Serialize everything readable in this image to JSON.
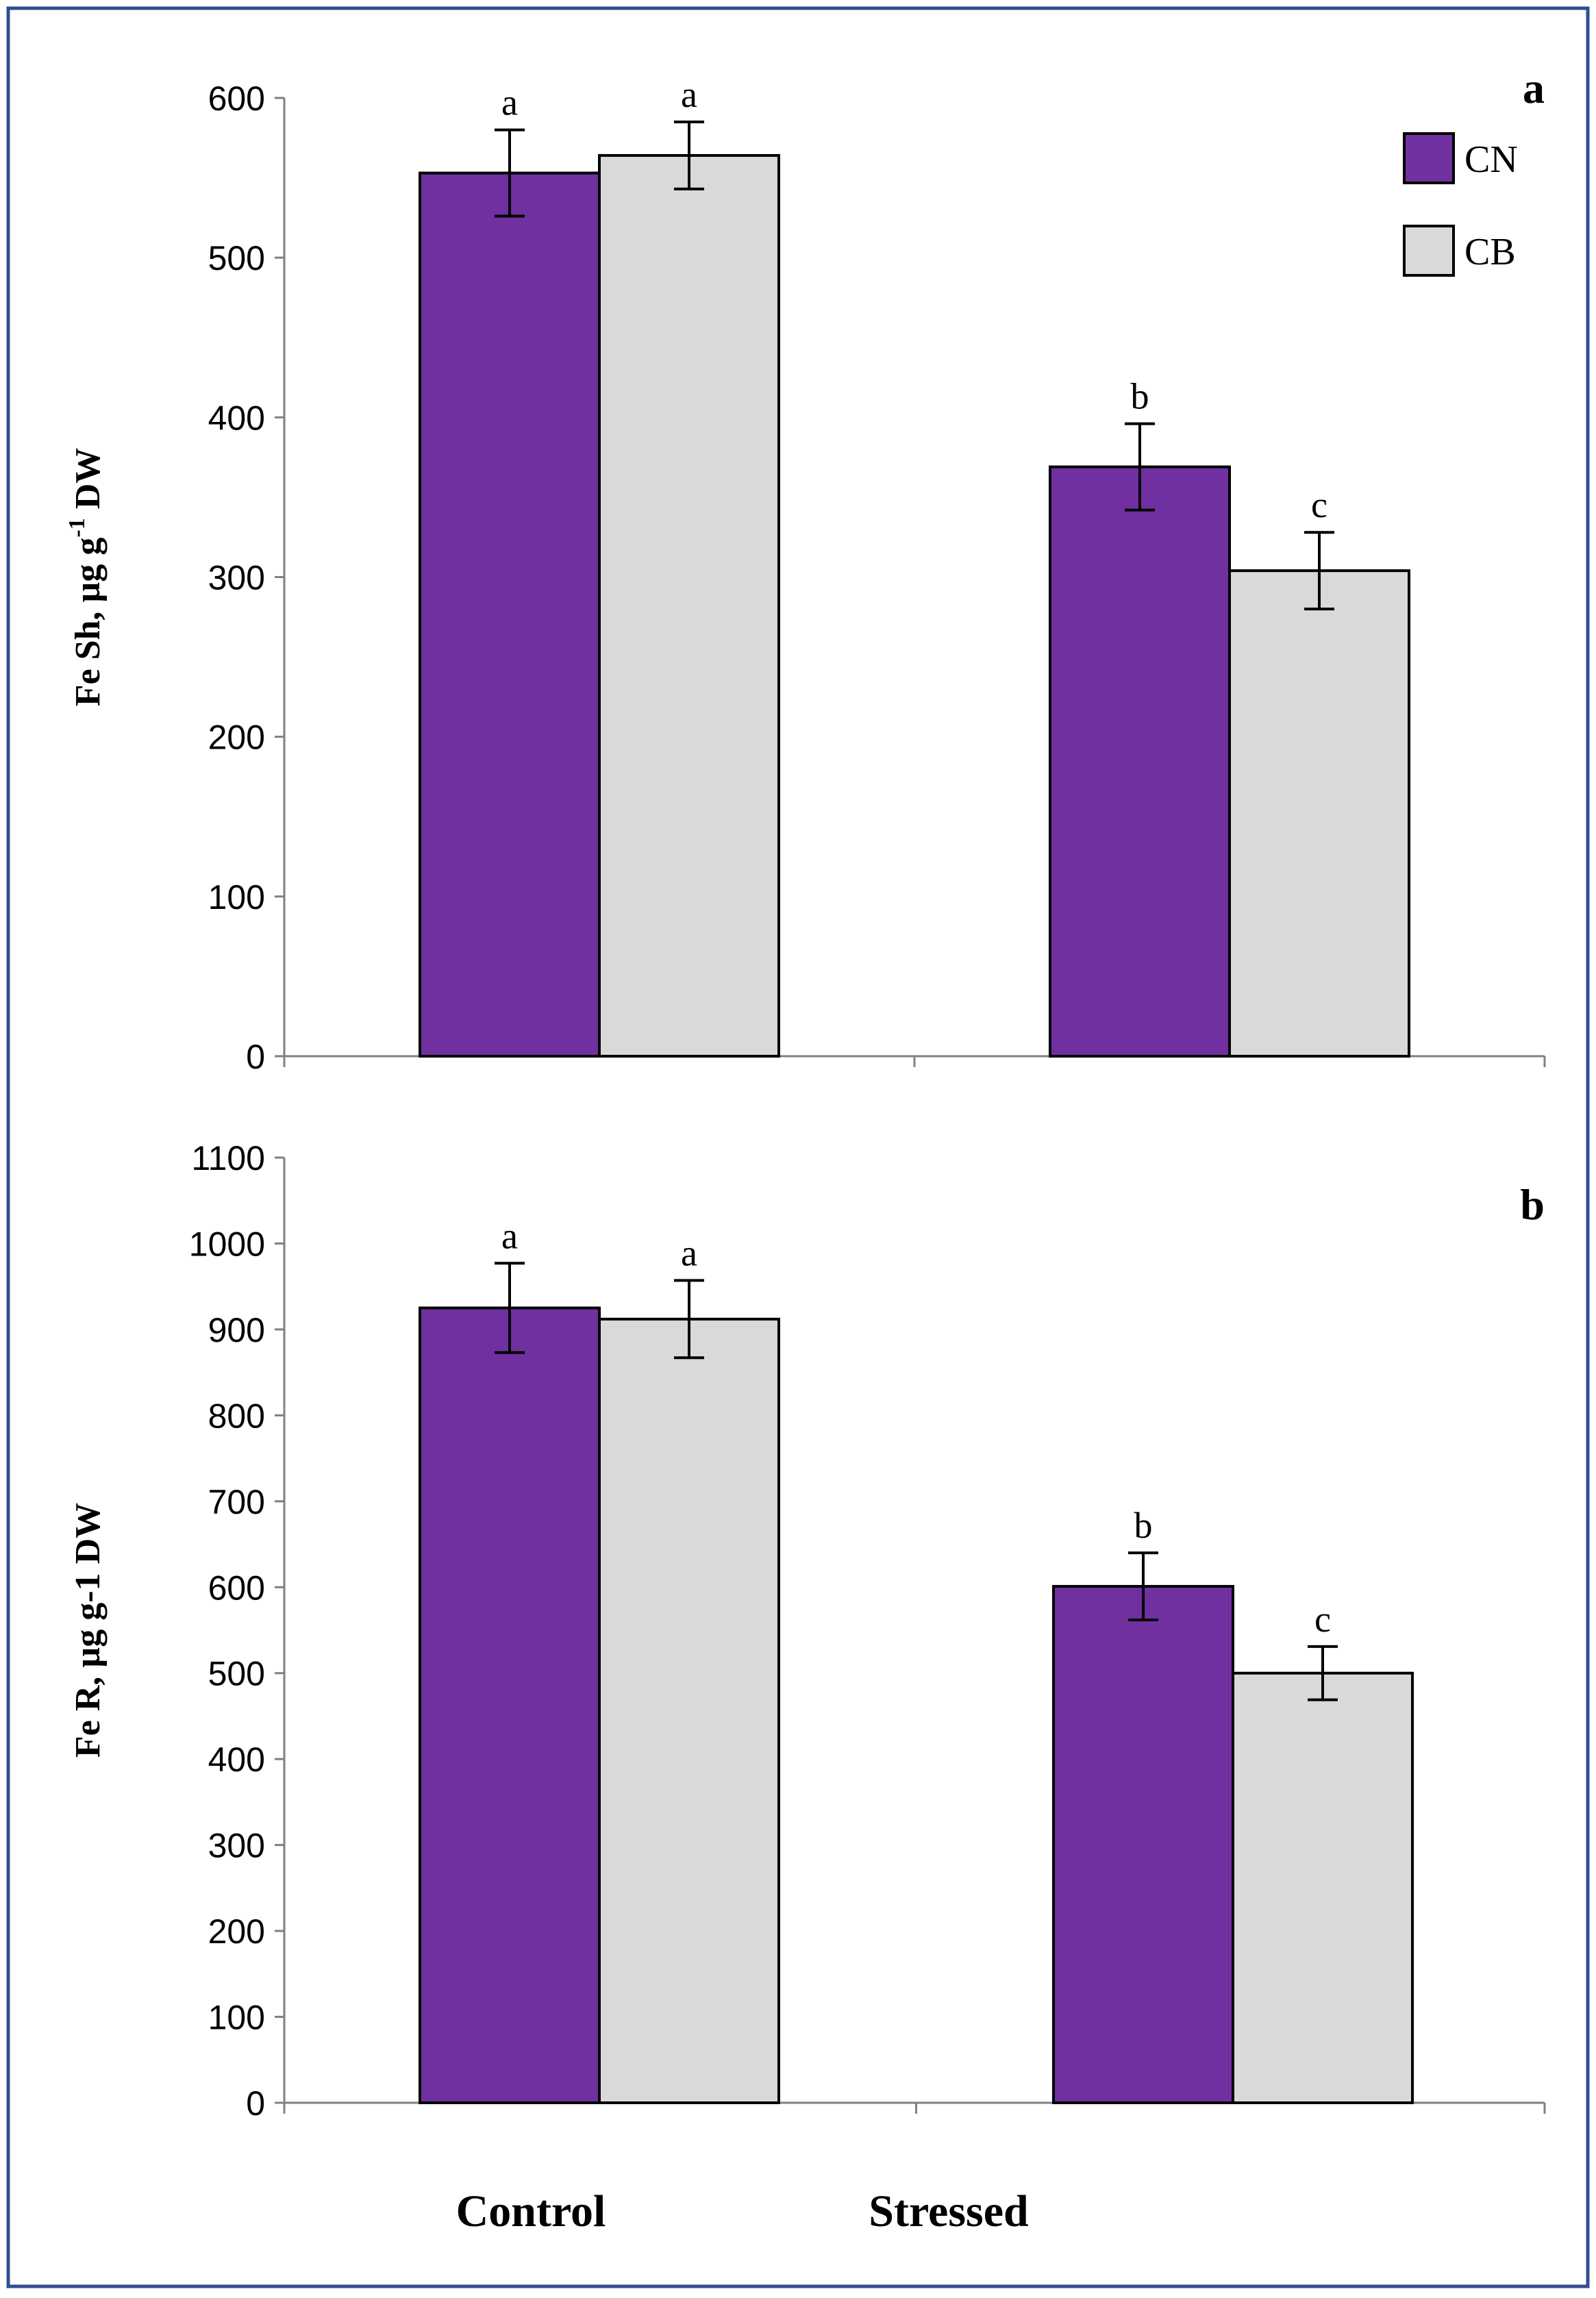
{
  "colors": {
    "frame": "#2f4f8f",
    "cn": "#7030a0",
    "cb": "#d9d9d9",
    "axis": "#808080",
    "bar_edge": "#000000"
  },
  "chart_data": [
    {
      "type": "bar",
      "panel_label": "a",
      "title": "",
      "ylabel": "Fe Sh, µg g",
      "ylabel_sup": "-1",
      "ylabel_tail": " DW",
      "xlabel": "",
      "categories": [
        "Control",
        "Stressed"
      ],
      "ylim": [
        0,
        600
      ],
      "yticks": [
        0,
        100,
        200,
        300,
        400,
        500,
        600
      ],
      "legend": {
        "placement": "top-right",
        "entries": [
          "CN",
          "CB"
        ]
      },
      "series": [
        {
          "name": "CN",
          "values": [
            553,
            369
          ],
          "errors": [
            27,
            27
          ],
          "letters": [
            "a",
            "b"
          ]
        },
        {
          "name": "CB",
          "values": [
            564,
            304
          ],
          "errors": [
            21,
            24
          ],
          "letters": [
            "a",
            "c"
          ]
        }
      ]
    },
    {
      "type": "bar",
      "panel_label": "b",
      "title": "",
      "ylabel": "Fe R, µg g-1 DW",
      "xlabel": "",
      "categories": [
        "Control",
        "Stressed"
      ],
      "ylim": [
        0,
        1100
      ],
      "yticks": [
        0,
        100,
        200,
        300,
        400,
        500,
        600,
        700,
        800,
        900,
        1000,
        1100
      ],
      "series": [
        {
          "name": "CN",
          "values": [
            925,
            601
          ],
          "errors": [
            52,
            39
          ],
          "letters": [
            "a",
            "b"
          ]
        },
        {
          "name": "CB",
          "values": [
            912,
            500
          ],
          "errors": [
            45,
            31
          ],
          "letters": [
            "a",
            "c"
          ]
        }
      ]
    }
  ],
  "x_axis_labels": [
    "Control",
    "Stressed"
  ]
}
